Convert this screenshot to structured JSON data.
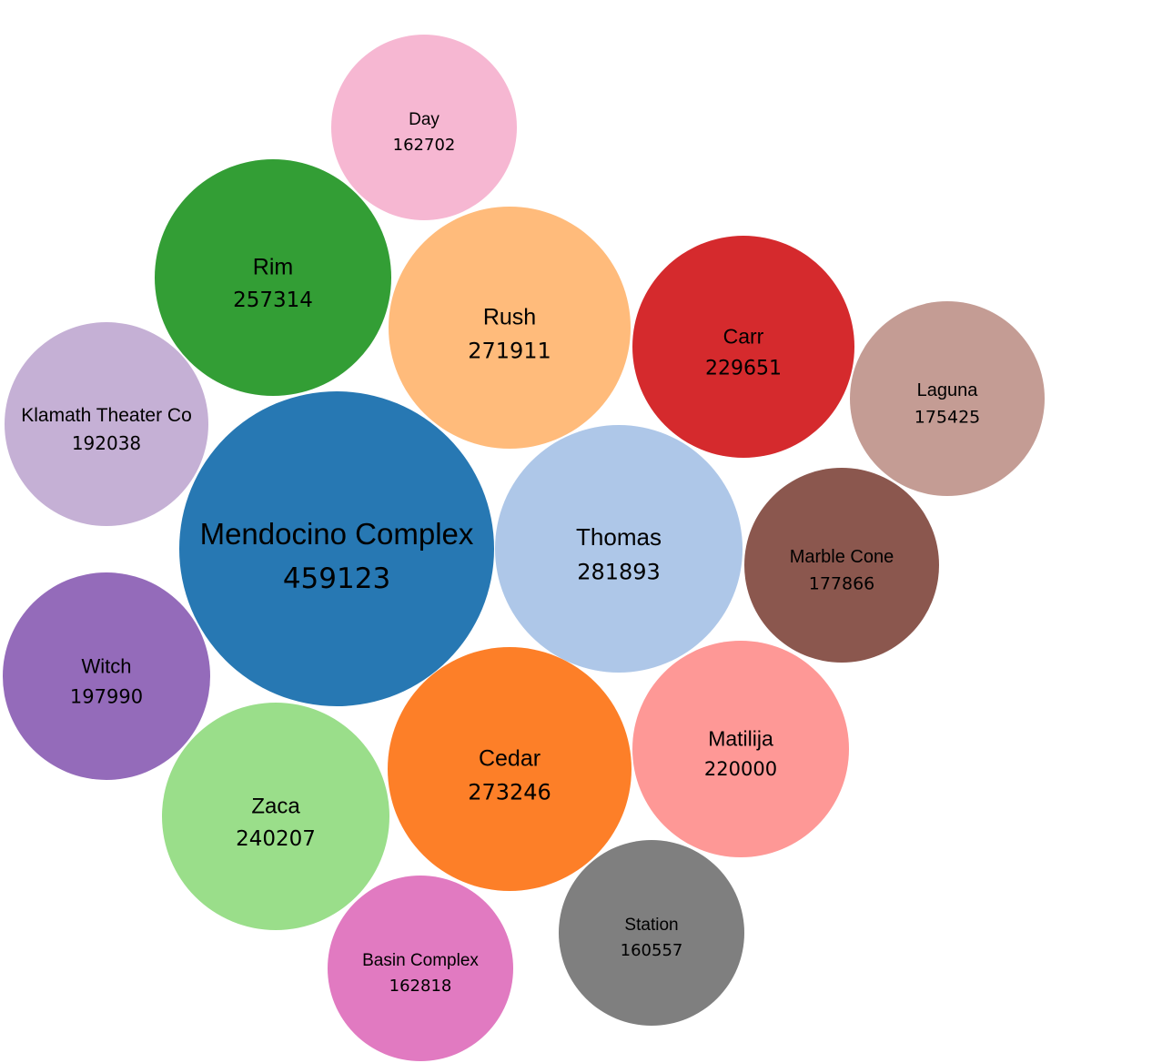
{
  "chart_data": {
    "type": "bubble",
    "title": "",
    "items": [
      {
        "name": "Mendocino Complex",
        "value": 459123,
        "color": "#2778b3"
      },
      {
        "name": "Thomas",
        "value": 281893,
        "color": "#aec7e8"
      },
      {
        "name": "Cedar",
        "value": 273246,
        "color": "#fd7f28"
      },
      {
        "name": "Rush",
        "value": 271911,
        "color": "#ffbb7b"
      },
      {
        "name": "Rim",
        "value": 257314,
        "color": "#339e35"
      },
      {
        "name": "Zaca",
        "value": 240207,
        "color": "#9ade8a"
      },
      {
        "name": "Carr",
        "value": 229651,
        "color": "#d52a2d"
      },
      {
        "name": "Matilija",
        "value": 220000,
        "color": "#fe9896"
      },
      {
        "name": "Witch",
        "value": 197990,
        "color": "#946bba"
      },
      {
        "name": "Klamath Theater Co",
        "value": 192038,
        "color": "#c5b0d5"
      },
      {
        "name": "Marble Cone",
        "value": 177866,
        "color": "#8b574e"
      },
      {
        "name": "Laguna",
        "value": 175425,
        "color": "#c49c94"
      },
      {
        "name": "Basin Complex",
        "value": 162818,
        "color": "#e17ac1"
      },
      {
        "name": "Day",
        "value": 162702,
        "color": "#f6b7d2"
      },
      {
        "name": "Station",
        "value": 160557,
        "color": "#7f7f7f"
      }
    ]
  }
}
